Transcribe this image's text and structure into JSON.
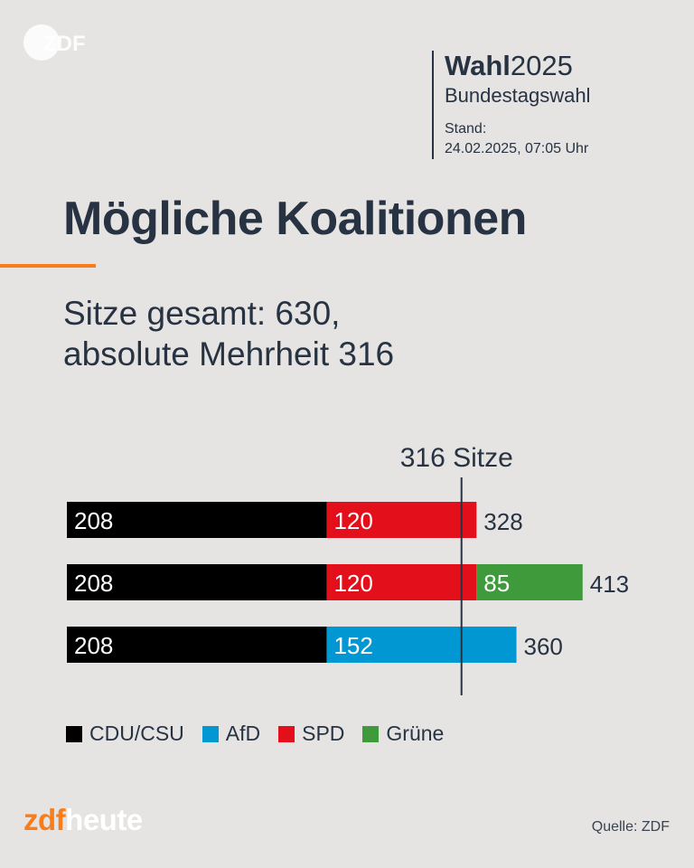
{
  "logo": {
    "text": "ZDF"
  },
  "header": {
    "title_bold": "Wahl",
    "title_year": "2025",
    "subtitle": "Bundestagswahl",
    "stand_label": "Stand:",
    "stand_value": "24.02.2025, 07:05 Uhr"
  },
  "title": "Mögliche Koalitionen",
  "subtitle_line1": "Sitze gesamt: 630,",
  "subtitle_line2": "absolute Mehrheit 316",
  "colors": {
    "CDU/CSU": "#000000",
    "AfD": "#0097d2",
    "SPD": "#e3101b",
    "Grüne": "#3f9a3c",
    "accent": "#fa7d19",
    "text": "#273343"
  },
  "chart_data": {
    "type": "bar",
    "orientation": "horizontal",
    "stacked": true,
    "threshold": {
      "value": 316,
      "label": "316 Sitze"
    },
    "rows": [
      {
        "segments": [
          {
            "party": "CDU/CSU",
            "value": 208
          },
          {
            "party": "SPD",
            "value": 120
          }
        ],
        "total": 328
      },
      {
        "segments": [
          {
            "party": "CDU/CSU",
            "value": 208
          },
          {
            "party": "SPD",
            "value": 120
          },
          {
            "party": "Grüne",
            "value": 85
          }
        ],
        "total": 413
      },
      {
        "segments": [
          {
            "party": "CDU/CSU",
            "value": 208
          },
          {
            "party": "AfD",
            "value": 152
          }
        ],
        "total": 360
      }
    ],
    "legend": [
      "CDU/CSU",
      "AfD",
      "SPD",
      "Grüne"
    ],
    "legend_placement": "bottom"
  },
  "brand": {
    "zdf": "zdf",
    "heute": "heute"
  },
  "source": "Quelle: ZDF"
}
